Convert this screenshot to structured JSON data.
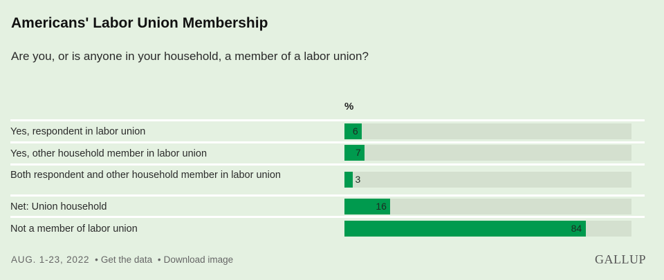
{
  "header": {
    "title": "Americans' Labor Union Membership",
    "subtitle": "Are you, or is anyone in your household, a member of a labor union?"
  },
  "chart": {
    "unit_header": "%",
    "bar_color": "#009a4e",
    "track_color": "#d4e0cf",
    "rows": [
      {
        "label": "Yes, respondent in labor union",
        "value": "6"
      },
      {
        "label": "Yes, other household member in labor union",
        "value": "7"
      },
      {
        "label": "Both respondent and other household member in labor union",
        "value": "3"
      },
      {
        "label": "Net: Union household",
        "value": "16"
      },
      {
        "label": "Not a member of labor union",
        "value": "84"
      }
    ]
  },
  "footer": {
    "date": "AUG. 1-23, 2022",
    "separator": "•",
    "get_data": "Get the data",
    "download": "Download image",
    "logo": "GALLUP"
  },
  "chart_data": {
    "type": "bar",
    "orientation": "horizontal",
    "title": "Americans' Labor Union Membership",
    "subtitle": "Are you, or is anyone in your household, a member of a labor union?",
    "categories": [
      "Yes, respondent in labor union",
      "Yes, other household member in labor union",
      "Both respondent and other household member in labor union",
      "Net: Union household",
      "Not a member of labor union"
    ],
    "values": [
      6,
      7,
      3,
      16,
      84
    ],
    "xlabel": "%",
    "ylabel": "",
    "xlim": [
      0,
      100
    ],
    "grid": false,
    "legend": null,
    "annotations": [
      "AUG. 1-23, 2022"
    ],
    "source": "GALLUP"
  }
}
